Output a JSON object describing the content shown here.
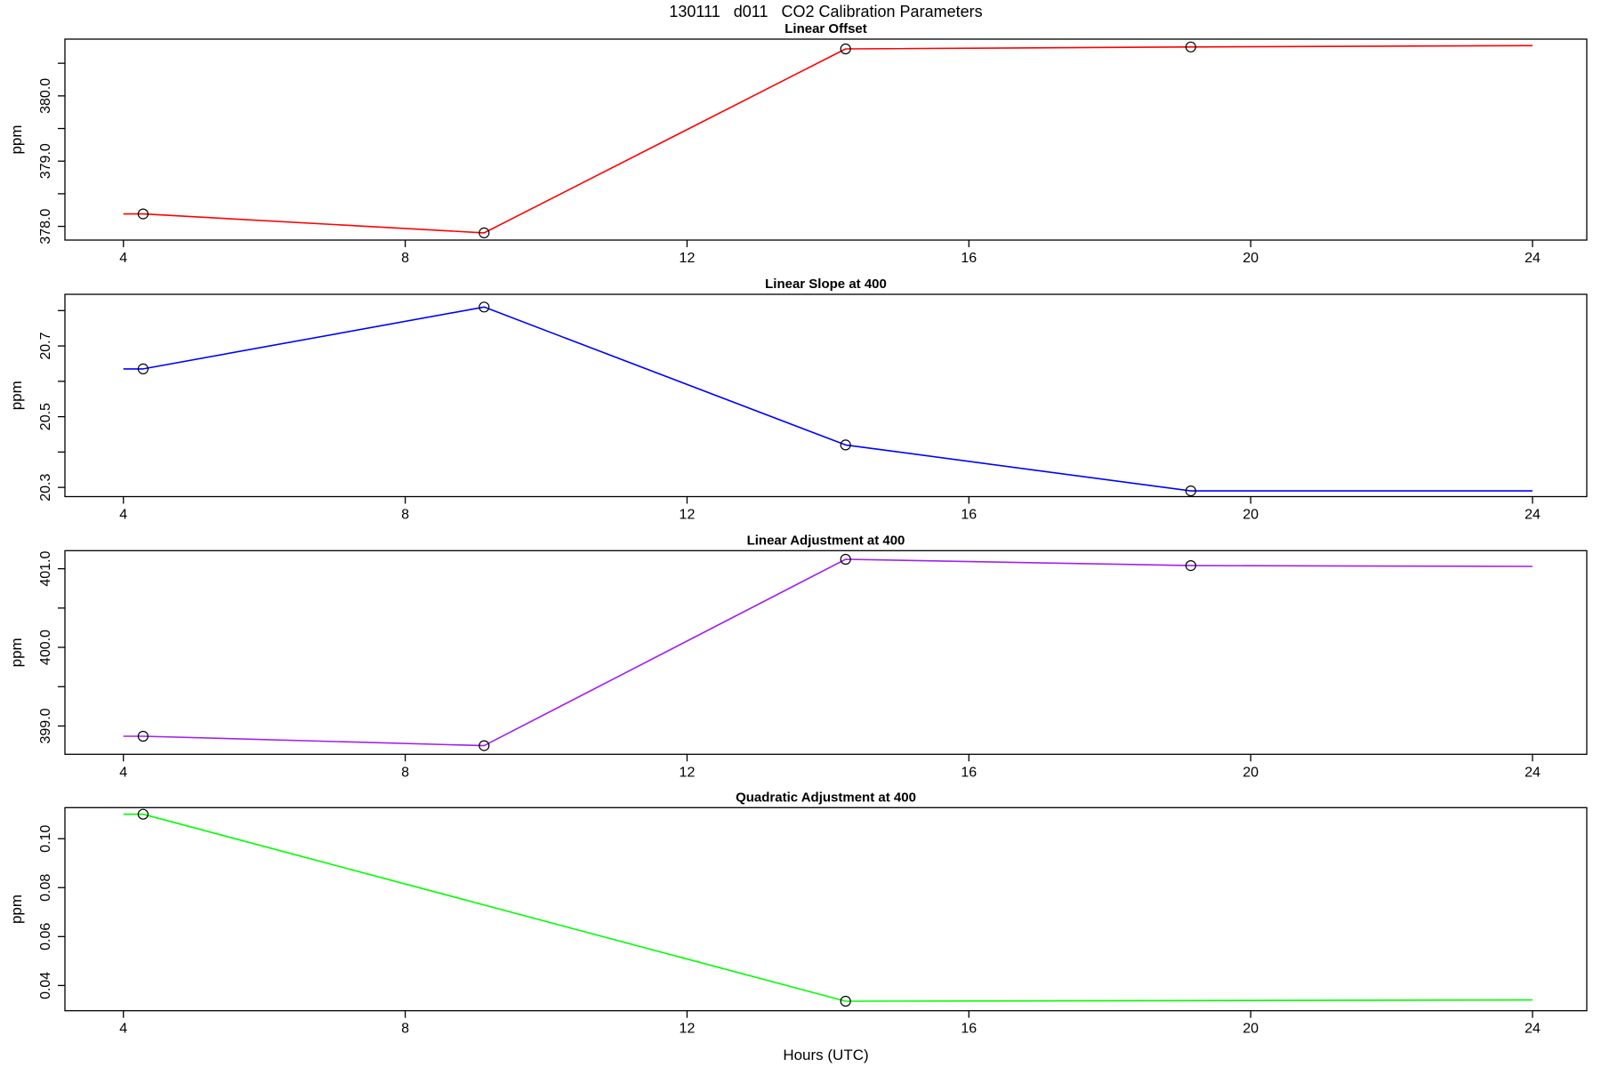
{
  "figure": {
    "title": "130111   d011   CO2 Calibration Parameters",
    "xlabel": "Hours (UTC)",
    "ylabel": "ppm"
  },
  "chart_data": [
    {
      "type": "line",
      "title": "Linear Offset",
      "ylabel": "ppm",
      "line_color": "#FF0000",
      "line_color_name": "red",
      "marker": "open-circle",
      "grid": false,
      "legend": "none",
      "xlim": [
        3.17,
        24.77
      ],
      "ylim": [
        377.79,
        380.87
      ],
      "x_ticks": [
        [
          4,
          "4"
        ],
        [
          8,
          "8"
        ],
        [
          12,
          "12"
        ],
        [
          16,
          "16"
        ],
        [
          20,
          "20"
        ],
        [
          24,
          "24"
        ]
      ],
      "y_ticks": [
        [
          378.0,
          "378.0"
        ],
        [
          378.5,
          null
        ],
        [
          379.0,
          "379.0"
        ],
        [
          379.5,
          null
        ],
        [
          380.0,
          "380.0"
        ],
        [
          380.5,
          null
        ]
      ],
      "series": [
        {
          "name": "linear-offset-ppm",
          "line": [
            [
              4.0,
              378.19
            ],
            [
              4.28,
              378.19
            ],
            [
              9.12,
              377.9
            ],
            [
              14.25,
              380.72
            ],
            [
              19.15,
              380.75
            ],
            [
              24.0,
              380.77
            ]
          ],
          "markers": [
            [
              4.28,
              378.19
            ],
            [
              9.12,
              377.9
            ],
            [
              14.25,
              380.72
            ],
            [
              19.15,
              380.75
            ]
          ]
        }
      ]
    },
    {
      "type": "line",
      "title": "Linear Slope at 400",
      "ylabel": "ppm",
      "line_color": "#0000FF",
      "line_color_name": "blue",
      "marker": "open-circle",
      "grid": false,
      "legend": "none",
      "xlim": [
        3.17,
        24.77
      ],
      "ylim": [
        20.274,
        20.846
      ],
      "x_ticks": [
        [
          4,
          "4"
        ],
        [
          8,
          "8"
        ],
        [
          12,
          "12"
        ],
        [
          16,
          "16"
        ],
        [
          20,
          "20"
        ],
        [
          24,
          "24"
        ]
      ],
      "y_ticks": [
        [
          20.3,
          "20.3"
        ],
        [
          20.4,
          null
        ],
        [
          20.5,
          "20.5"
        ],
        [
          20.6,
          null
        ],
        [
          20.7,
          "20.7"
        ],
        [
          20.8,
          null
        ]
      ],
      "series": [
        {
          "name": "linear-slope-at-400-ppm",
          "line": [
            [
              4.0,
              20.635
            ],
            [
              4.28,
              20.635
            ],
            [
              9.12,
              20.81
            ],
            [
              14.25,
              20.42
            ],
            [
              19.15,
              20.29
            ],
            [
              24.0,
              20.29
            ]
          ],
          "markers": [
            [
              4.28,
              20.635
            ],
            [
              9.12,
              20.81
            ],
            [
              14.25,
              20.42
            ],
            [
              19.15,
              20.29
            ]
          ]
        }
      ]
    },
    {
      "type": "line",
      "title": "Linear Adjustment at 400",
      "ylabel": "ppm",
      "line_color": "#A020F0",
      "line_color_name": "purple",
      "marker": "open-circle",
      "grid": false,
      "legend": "none",
      "xlim": [
        3.17,
        24.77
      ],
      "ylim": [
        398.64,
        401.23
      ],
      "x_ticks": [
        [
          4,
          "4"
        ],
        [
          8,
          "8"
        ],
        [
          12,
          "12"
        ],
        [
          16,
          "16"
        ],
        [
          20,
          "20"
        ],
        [
          24,
          "24"
        ]
      ],
      "y_ticks": [
        [
          399.0,
          "399.0"
        ],
        [
          399.5,
          null
        ],
        [
          400.0,
          "400.0"
        ],
        [
          400.5,
          null
        ],
        [
          401.0,
          "401.0"
        ]
      ],
      "series": [
        {
          "name": "linear-adjustment-at-400-ppm",
          "line": [
            [
              4.0,
              398.87
            ],
            [
              4.28,
              398.87
            ],
            [
              9.12,
              398.75
            ],
            [
              14.25,
              401.12
            ],
            [
              19.15,
              401.04
            ],
            [
              24.0,
              401.03
            ]
          ],
          "markers": [
            [
              4.28,
              398.87
            ],
            [
              9.12,
              398.75
            ],
            [
              14.25,
              401.12
            ],
            [
              19.15,
              401.04
            ]
          ]
        }
      ]
    },
    {
      "type": "line",
      "title": "Quadratic Adjustment at 400",
      "ylabel": "ppm",
      "line_color": "#00FF00",
      "line_color_name": "green",
      "marker": "open-circle",
      "grid": false,
      "legend": "none",
      "xlim": [
        3.17,
        24.77
      ],
      "ylim": [
        0.0297,
        0.1127
      ],
      "x_ticks": [
        [
          4,
          "4"
        ],
        [
          8,
          "8"
        ],
        [
          12,
          "12"
        ],
        [
          16,
          "16"
        ],
        [
          20,
          "20"
        ],
        [
          24,
          "24"
        ]
      ],
      "y_ticks": [
        [
          0.04,
          "0.04"
        ],
        [
          0.06,
          "0.06"
        ],
        [
          0.08,
          "0.08"
        ],
        [
          0.1,
          "0.10"
        ]
      ],
      "series": [
        {
          "name": "quadratic-adjustment-at-400-ppm",
          "line": [
            [
              4.0,
              0.11
            ],
            [
              4.28,
              0.11
            ],
            [
              14.25,
              0.0336
            ],
            [
              24.0,
              0.0341
            ]
          ],
          "markers": [
            [
              4.28,
              0.11
            ],
            [
              14.25,
              0.0336
            ]
          ]
        }
      ]
    }
  ]
}
